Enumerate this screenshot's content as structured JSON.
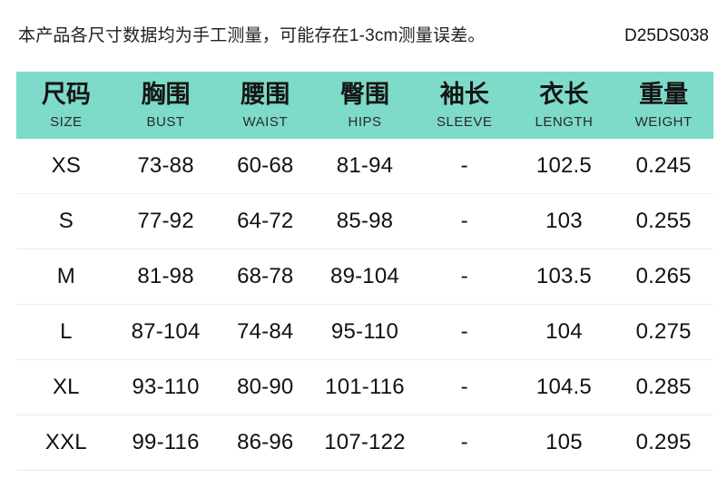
{
  "meta": {
    "note": "本产品各尺寸数据均为手工测量，可能存在1-3cm测量误差。",
    "product_code": "D25DS038"
  },
  "size_chart": {
    "columns": [
      {
        "zh": "尺码",
        "en": "SIZE"
      },
      {
        "zh": "胸围",
        "en": "BUST"
      },
      {
        "zh": "腰围",
        "en": "WAIST"
      },
      {
        "zh": "臀围",
        "en": "HIPS"
      },
      {
        "zh": "袖长",
        "en": "SLEEVE"
      },
      {
        "zh": "衣长",
        "en": "LENGTH"
      },
      {
        "zh": "重量",
        "en": "WEIGHT"
      }
    ],
    "rows": [
      [
        "XS",
        "73-88",
        "60-68",
        "81-94",
        "-",
        "102.5",
        "0.245"
      ],
      [
        "S",
        "77-92",
        "64-72",
        "85-98",
        "-",
        "103",
        "0.255"
      ],
      [
        "M",
        "81-98",
        "68-78",
        "89-104",
        "-",
        "103.5",
        "0.265"
      ],
      [
        "L",
        "87-104",
        "74-84",
        "95-110",
        "-",
        "104",
        "0.275"
      ],
      [
        "XL",
        "93-110",
        "80-90",
        "101-116",
        "-",
        "104.5",
        "0.285"
      ],
      [
        "XXL",
        "99-116",
        "86-96",
        "107-122",
        "-",
        "105",
        "0.295"
      ]
    ]
  },
  "colors": {
    "header_bg": "#7edac9",
    "divider": "#ececec",
    "text": "#111111"
  }
}
